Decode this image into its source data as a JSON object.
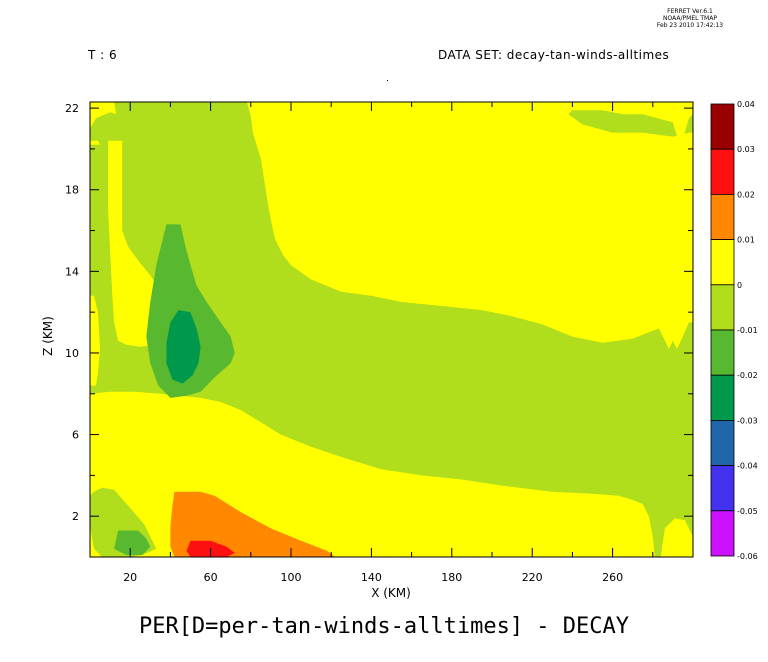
{
  "header": {
    "time_label": "T : 6",
    "dataset_label": "DATA SET: decay-tan-winds-alltimes",
    "stamp_line1": "FERRET Ver.6.1",
    "stamp_line2": "NOAA/PMEL TMAP",
    "stamp_line3": "Feb 23 2010 17:42:13"
  },
  "chart_data": {
    "type": "heatmap",
    "title": "PER[D=per-tan-winds-alltimes] - DECAY",
    "xlabel": "X (KM)",
    "ylabel": "Z (KM)",
    "xlim": [
      0,
      300
    ],
    "ylim": [
      0,
      22.3
    ],
    "x_ticks": [
      "20",
      "60",
      "100",
      "140",
      "180",
      "220",
      "260"
    ],
    "x_tick_values": [
      20,
      60,
      100,
      140,
      180,
      220,
      260
    ],
    "y_ticks": [
      "2",
      "6",
      "10",
      "14",
      "18",
      "22"
    ],
    "y_tick_values": [
      2,
      6,
      10,
      14,
      18,
      22
    ],
    "colorbar": {
      "levels": [
        "0.04",
        "0.03",
        "0.02",
        "0.01",
        "0",
        "-0.01",
        "-0.02",
        "-0.03",
        "-0.04",
        "-0.05",
        "-0.06"
      ],
      "level_values": [
        0.04,
        0.03,
        0.02,
        0.01,
        0,
        -0.01,
        -0.02,
        -0.03,
        -0.04,
        -0.05,
        -0.06
      ],
      "colors": [
        "#990000",
        "#ff1010",
        "#ff8800",
        "#ffff00",
        "#b0dd1c",
        "#58b830",
        "#00994c",
        "#2266aa",
        "#4433ee",
        "#cc11ff"
      ]
    },
    "regions": [
      {
        "range": [
          -0.01,
          0
        ],
        "color": "#b0dd1c",
        "points": [
          [
            0,
            0
          ],
          [
            300,
            0
          ],
          [
            300,
            22.3
          ],
          [
            0,
            22.3
          ]
        ]
      },
      {
        "range": [
          0,
          0.01
        ],
        "color": "#ffff00",
        "points": [
          [
            78,
            22.3
          ],
          [
            300,
            22.3
          ],
          [
            300,
            21.7
          ],
          [
            298,
            21.5
          ],
          [
            295,
            20.5
          ],
          [
            293,
            20.3
          ],
          [
            290,
            21.3
          ],
          [
            275,
            21.7
          ],
          [
            265,
            21.7
          ],
          [
            255,
            21.9
          ],
          [
            240,
            21.9
          ],
          [
            238,
            21.7
          ],
          [
            245,
            21.2
          ],
          [
            260,
            20.8
          ],
          [
            275,
            20.8
          ],
          [
            290,
            20.6
          ],
          [
            298,
            20.8
          ],
          [
            300,
            20.8
          ],
          [
            300,
            11.5
          ],
          [
            298,
            11.5
          ],
          [
            294,
            10.6
          ],
          [
            292,
            10.2
          ],
          [
            290,
            10.6
          ],
          [
            288,
            10.2
          ],
          [
            285,
            10.8
          ],
          [
            283,
            11.2
          ],
          [
            270,
            10.7
          ],
          [
            255,
            10.5
          ],
          [
            240,
            10.8
          ],
          [
            225,
            11.4
          ],
          [
            210,
            11.8
          ],
          [
            195,
            12.1
          ],
          [
            175,
            12.3
          ],
          [
            155,
            12.5
          ],
          [
            140,
            12.8
          ],
          [
            125,
            13.0
          ],
          [
            110,
            13.6
          ],
          [
            100,
            14.3
          ],
          [
            96,
            14.8
          ],
          [
            92,
            15.6
          ],
          [
            89,
            17.0
          ],
          [
            85,
            19.5
          ],
          [
            81,
            20.8
          ],
          [
            80,
            21.6
          ]
        ]
      },
      {
        "range": [
          0,
          0.01
        ],
        "color": "#ffff00",
        "points": [
          [
            0,
            22.3
          ],
          [
            12,
            22.3
          ],
          [
            13,
            21.7
          ],
          [
            10,
            21.8
          ],
          [
            3,
            21.5
          ],
          [
            0,
            21.0
          ]
        ]
      },
      {
        "range": [
          0,
          0.01
        ],
        "color": "#ffff00",
        "points": [
          [
            0,
            20.4
          ],
          [
            4,
            20.4
          ],
          [
            5,
            20.2
          ],
          [
            0,
            20.2
          ]
        ]
      },
      {
        "range": [
          0,
          0.01
        ],
        "color": "#ffff00",
        "points": [
          [
            9,
            20.4
          ],
          [
            16,
            20.4
          ],
          [
            16,
            16.0
          ],
          [
            19,
            15.2
          ],
          [
            25,
            14.4
          ],
          [
            30,
            13.8
          ],
          [
            34,
            13.2
          ],
          [
            36,
            12.5
          ],
          [
            37,
            11.6
          ],
          [
            38,
            11.0
          ],
          [
            37,
            10.7
          ],
          [
            34,
            10.5
          ],
          [
            32,
            10.4
          ],
          [
            25,
            10.3
          ],
          [
            18,
            10.4
          ],
          [
            14,
            10.6
          ],
          [
            12,
            11.5
          ],
          [
            11,
            13.0
          ],
          [
            10,
            15.0
          ],
          [
            9,
            17.0
          ]
        ]
      },
      {
        "range": [
          0,
          0.01
        ],
        "color": "#ffff00",
        "points": [
          [
            0,
            12.8
          ],
          [
            2,
            12.8
          ],
          [
            4,
            12.0
          ],
          [
            5,
            10.2
          ],
          [
            4,
            9.0
          ],
          [
            3,
            8.4
          ],
          [
            0,
            8.4
          ]
        ]
      },
      {
        "range": [
          0,
          0.01
        ],
        "color": "#ffff00",
        "points": [
          [
            0,
            8.0
          ],
          [
            10,
            8.1
          ],
          [
            22,
            8.1
          ],
          [
            35,
            8.0
          ],
          [
            45,
            7.9
          ],
          [
            55,
            7.8
          ],
          [
            65,
            7.6
          ],
          [
            75,
            7.2
          ],
          [
            85,
            6.6
          ],
          [
            95,
            6.0
          ],
          [
            110,
            5.4
          ],
          [
            125,
            4.9
          ],
          [
            145,
            4.3
          ],
          [
            165,
            4.0
          ],
          [
            185,
            3.8
          ],
          [
            205,
            3.5
          ],
          [
            230,
            3.2
          ],
          [
            250,
            3.1
          ],
          [
            263,
            3.0
          ],
          [
            270,
            2.8
          ],
          [
            275,
            2.6
          ],
          [
            278,
            2.0
          ],
          [
            280,
            1.0
          ],
          [
            281,
            0
          ],
          [
            0,
            0
          ]
        ]
      },
      {
        "range": [
          0,
          0.01
        ],
        "color": "#ffff00",
        "points": [
          [
            284,
            0
          ],
          [
            300,
            0
          ],
          [
            300,
            1.0
          ],
          [
            296,
            1.8
          ],
          [
            291,
            1.9
          ],
          [
            286,
            1.4
          ],
          [
            285,
            0.8
          ]
        ]
      },
      {
        "range": [
          -0.01,
          0
        ],
        "color": "#b0dd1c",
        "points": [
          [
            2,
            3.2
          ],
          [
            6,
            3.4
          ],
          [
            12,
            3.3
          ],
          [
            20,
            2.4
          ],
          [
            27,
            1.6
          ],
          [
            31,
            0.8
          ],
          [
            33,
            0.4
          ],
          [
            26,
            0.1
          ],
          [
            20,
            0
          ],
          [
            6,
            0
          ],
          [
            2,
            0.4
          ],
          [
            0,
            1.5
          ],
          [
            0,
            3.0
          ]
        ]
      },
      {
        "range": [
          0.01,
          0.02
        ],
        "color": "#ff8800",
        "points": [
          [
            42,
            3.2
          ],
          [
            55,
            3.2
          ],
          [
            62,
            3.0
          ],
          [
            75,
            2.2
          ],
          [
            90,
            1.4
          ],
          [
            105,
            0.8
          ],
          [
            118,
            0.3
          ],
          [
            122,
            0
          ],
          [
            42,
            0
          ],
          [
            40,
            0.5
          ],
          [
            40,
            1.5
          ],
          [
            41,
            2.5
          ]
        ]
      },
      {
        "range": [
          0.02,
          0.03
        ],
        "color": "#ff1010",
        "points": [
          [
            50,
            0.8
          ],
          [
            60,
            0.8
          ],
          [
            68,
            0.5
          ],
          [
            72,
            0.2
          ],
          [
            68,
            0
          ],
          [
            50,
            0
          ],
          [
            48,
            0.3
          ]
        ]
      },
      {
        "range": [
          -0.02,
          -0.01
        ],
        "color": "#58b830",
        "points": [
          [
            38,
            16.3
          ],
          [
            45,
            16.3
          ],
          [
            48,
            15.0
          ],
          [
            53,
            13.3
          ],
          [
            58,
            12.5
          ],
          [
            65,
            11.5
          ],
          [
            70,
            10.8
          ],
          [
            72,
            10.0
          ],
          [
            70,
            9.5
          ],
          [
            62,
            8.8
          ],
          [
            55,
            8.1
          ],
          [
            48,
            7.9
          ],
          [
            40,
            7.8
          ],
          [
            34,
            8.4
          ],
          [
            30,
            9.5
          ],
          [
            28,
            10.8
          ],
          [
            30,
            12.5
          ],
          [
            33,
            14.3
          ]
        ]
      },
      {
        "range": [
          -0.02,
          -0.01
        ],
        "color": "#58b830",
        "points": [
          [
            14,
            1.3
          ],
          [
            24,
            1.3
          ],
          [
            28,
            0.9
          ],
          [
            30,
            0.5
          ],
          [
            26,
            0.1
          ],
          [
            18,
            0.1
          ],
          [
            12,
            0.4
          ]
        ]
      },
      {
        "range": [
          -0.03,
          -0.02
        ],
        "color": "#00994c",
        "points": [
          [
            44,
            12.1
          ],
          [
            50,
            12.0
          ],
          [
            53,
            11.2
          ],
          [
            55,
            10.3
          ],
          [
            54,
            9.5
          ],
          [
            51,
            8.9
          ],
          [
            46,
            8.5
          ],
          [
            41,
            8.7
          ],
          [
            38,
            9.5
          ],
          [
            38,
            10.5
          ],
          [
            40,
            11.5
          ]
        ]
      }
    ]
  }
}
